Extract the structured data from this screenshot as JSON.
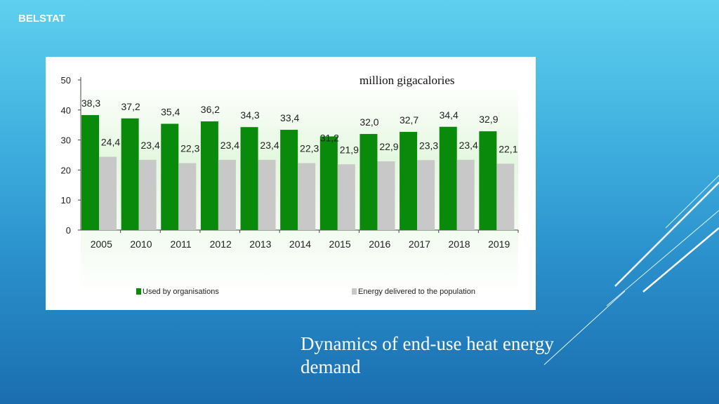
{
  "brand": "BELSTAT",
  "caption": "Dynamics of end-use heat energy demand",
  "colors": {
    "organisations": "#0a8a0a",
    "population": "#c8c8c8"
  },
  "chart_data": {
    "type": "bar",
    "unit_label": "million gigacalories",
    "categories": [
      "2005",
      "2010",
      "2011",
      "2012",
      "2013",
      "2014",
      "2015",
      "2016",
      "2017",
      "2018",
      "2019"
    ],
    "series": [
      {
        "name": "Used by organisations",
        "values": [
          38.3,
          37.2,
          35.4,
          36.2,
          34.3,
          33.4,
          31.2,
          32.0,
          32.7,
          34.4,
          32.9
        ],
        "labels": [
          "38,3",
          "37,2",
          "35,4",
          "36,2",
          "34,3",
          "33,4",
          "31,2",
          "32,0",
          "32,7",
          "34,4",
          "32,9"
        ]
      },
      {
        "name": "Energy delivered to the population",
        "values": [
          24.4,
          23.4,
          22.3,
          23.4,
          23.4,
          22.3,
          21.9,
          22.9,
          23.3,
          23.4,
          22.1
        ],
        "labels": [
          "24,4",
          "23,4",
          "22,3",
          "23,4",
          "23,4",
          "22,3",
          "21,9",
          "22,9",
          "23,3",
          "23,4",
          "22,1"
        ]
      }
    ],
    "yticks": [
      "0",
      "10",
      "20",
      "30",
      "40",
      "50"
    ],
    "ylim": [
      0,
      50
    ],
    "grid": false,
    "legend_position": "bottom"
  }
}
